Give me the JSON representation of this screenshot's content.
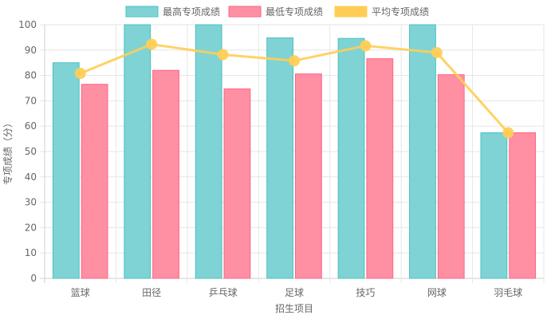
{
  "chart_data": {
    "type": "bar",
    "categories": [
      "篮球",
      "田径",
      "乒乓球",
      "足球",
      "技巧",
      "网球",
      "羽毛球"
    ],
    "series": [
      {
        "name": "最高专项成绩",
        "kind": "bar",
        "values": [
          85,
          100,
          100,
          94.8,
          94.6,
          100,
          57.4
        ],
        "fill": "#7fd3d4",
        "stroke": "#4bc0c0"
      },
      {
        "name": "最低专项成绩",
        "kind": "bar",
        "values": [
          76.5,
          82,
          74.7,
          80.6,
          86.6,
          80.3,
          57.4
        ],
        "fill": "#ff8fa3",
        "stroke": "#ff6384"
      },
      {
        "name": "平均专项成绩",
        "kind": "line",
        "values": [
          80.8,
          92.3,
          88.2,
          85.8,
          91.7,
          89,
          57.4
        ],
        "color": "#ffcd56"
      }
    ],
    "yticks": [
      "0",
      "10",
      "20",
      "30",
      "40",
      "50",
      "60",
      "70",
      "80",
      "90",
      "100"
    ],
    "ylim": [
      0,
      100
    ],
    "xlabel": "招生项目",
    "ylabel": "专项成绩（分）",
    "grid": true,
    "legend_position": "top-center"
  }
}
